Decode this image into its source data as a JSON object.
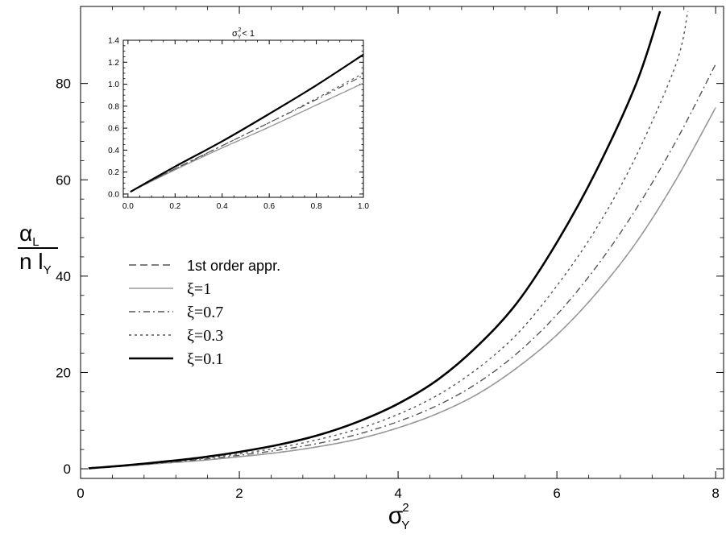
{
  "chart_data": [
    {
      "type": "line",
      "title": "",
      "xlabel_base": "σ",
      "xlabel_sup": "2",
      "xlabel_sub": "Y",
      "ylabel_numerator": "α",
      "ylabel_numerator_sub": "L",
      "ylabel_denominator": "n l",
      "ylabel_denominator_sub": "Y",
      "xlim": [
        0,
        8.1
      ],
      "ylim": [
        -2,
        96
      ],
      "x_ticks": [
        0,
        2,
        4,
        6,
        8
      ],
      "y_ticks": [
        0,
        20,
        40,
        60,
        80
      ],
      "x_tick_labels": [
        "0",
        "2",
        "4",
        "6",
        "8"
      ],
      "y_tick_labels": [
        "0",
        "20",
        "40",
        "60",
        "80"
      ],
      "grid": false,
      "legend_position": "center-left",
      "series": [
        {
          "name": "1st order appr.",
          "color": "#555555",
          "style": "dashed",
          "x": [
            0.1,
            0.5,
            1,
            1.5,
            2,
            2.5,
            3,
            3.5,
            4,
            4.5,
            5,
            5.5,
            6,
            6.5,
            7,
            7.5,
            8
          ],
          "y": [
            0.1,
            0.5,
            1.1,
            1.7,
            2.5,
            3.4,
            4.6,
            6.2,
            8.5,
            11.5,
            15.5,
            21.0,
            27.8,
            36.5,
            47.0,
            60.0,
            75.0
          ]
        },
        {
          "name": "ξ=1",
          "color": "#999999",
          "style": "solid",
          "x": [
            0.1,
            0.5,
            1,
            1.5,
            2,
            2.5,
            3,
            3.5,
            4,
            4.5,
            5,
            5.5,
            6,
            6.5,
            7,
            7.5,
            8
          ],
          "y": [
            0.1,
            0.5,
            1.1,
            1.7,
            2.5,
            3.4,
            4.6,
            6.2,
            8.5,
            11.5,
            15.5,
            21.0,
            27.8,
            36.5,
            47.0,
            60.0,
            75.0
          ]
        },
        {
          "name": "ξ=0.7",
          "color": "#555555",
          "style": "dashdot",
          "x": [
            0.1,
            0.5,
            1,
            1.5,
            2,
            2.5,
            3,
            3.5,
            4,
            4.5,
            5,
            5.5,
            6,
            6.5,
            7,
            7.5,
            8
          ],
          "y": [
            0.1,
            0.5,
            1.2,
            1.9,
            2.8,
            3.9,
            5.3,
            7.2,
            9.8,
            13.2,
            17.8,
            24.0,
            32.0,
            42.0,
            54.0,
            68.0,
            84.0
          ]
        },
        {
          "name": "ξ=0.3",
          "color": "#555555",
          "style": "dotted",
          "x": [
            0.1,
            0.5,
            1,
            1.5,
            2,
            2.5,
            3,
            3.5,
            4,
            4.5,
            5,
            5.5,
            6,
            6.5,
            7,
            7.5,
            7.65
          ],
          "y": [
            0.1,
            0.6,
            1.3,
            2.1,
            3.1,
            4.4,
            6.1,
            8.3,
            11.3,
            15.3,
            20.8,
            28.0,
            38.0,
            50.0,
            65.0,
            84.0,
            95.0
          ]
        },
        {
          "name": "ξ=0.1",
          "color": "#000000",
          "style": "solid",
          "x": [
            0.1,
            0.5,
            1,
            1.5,
            2,
            2.5,
            3,
            3.5,
            4,
            4.5,
            5,
            5.5,
            6,
            6.5,
            7,
            7.3
          ],
          "y": [
            0.1,
            0.6,
            1.4,
            2.3,
            3.5,
            5.0,
            7.0,
            9.8,
            13.5,
            18.5,
            25.5,
            34.5,
            47.0,
            62.0,
            80.0,
            95.0
          ]
        }
      ]
    },
    {
      "type": "line",
      "title_base": "σ",
      "title_sup": "2",
      "title_sub": "Y",
      "title_suffix": "< 1",
      "xlim": [
        -0.02,
        1.0
      ],
      "ylim": [
        -0.03,
        1.4
      ],
      "x_ticks": [
        0.0,
        0.2,
        0.4,
        0.6,
        0.8,
        1.0
      ],
      "y_ticks": [
        0.0,
        0.2,
        0.4,
        0.6,
        0.8,
        1.0,
        1.2,
        1.4
      ],
      "x_tick_labels": [
        "0.0",
        "0.2",
        "0.4",
        "0.6",
        "0.8",
        "1.0"
      ],
      "y_tick_labels": [
        "0.0",
        "0.2",
        "0.4",
        "0.6",
        "0.8",
        "1.0",
        "1.2",
        "1.4"
      ],
      "grid": false,
      "series": [
        {
          "name": "1st order appr.",
          "color": "#555555",
          "style": "dashed",
          "x": [
            0.01,
            0.2,
            0.4,
            0.6,
            0.8,
            1.0
          ],
          "y": [
            0.02,
            0.23,
            0.42,
            0.61,
            0.81,
            1.01
          ]
        },
        {
          "name": "ξ=1",
          "color": "#999999",
          "style": "solid",
          "x": [
            0.01,
            0.2,
            0.4,
            0.6,
            0.8,
            1.0
          ],
          "y": [
            0.02,
            0.22,
            0.42,
            0.61,
            0.81,
            1.01
          ]
        },
        {
          "name": "ξ=0.7",
          "color": "#555555",
          "style": "dashdot",
          "x": [
            0.01,
            0.2,
            0.4,
            0.6,
            0.8,
            1.0
          ],
          "y": [
            0.02,
            0.23,
            0.44,
            0.65,
            0.86,
            1.08
          ]
        },
        {
          "name": "ξ=0.3",
          "color": "#555555",
          "style": "dotted",
          "x": [
            0.01,
            0.2,
            0.4,
            0.6,
            0.8,
            1.0
          ],
          "y": [
            0.02,
            0.23,
            0.44,
            0.65,
            0.87,
            1.1
          ]
        },
        {
          "name": "ξ=0.1",
          "color": "#000000",
          "style": "solid",
          "x": [
            0.01,
            0.2,
            0.4,
            0.6,
            0.8,
            1.0
          ],
          "y": [
            0.02,
            0.25,
            0.48,
            0.73,
            0.99,
            1.27
          ]
        }
      ]
    }
  ]
}
